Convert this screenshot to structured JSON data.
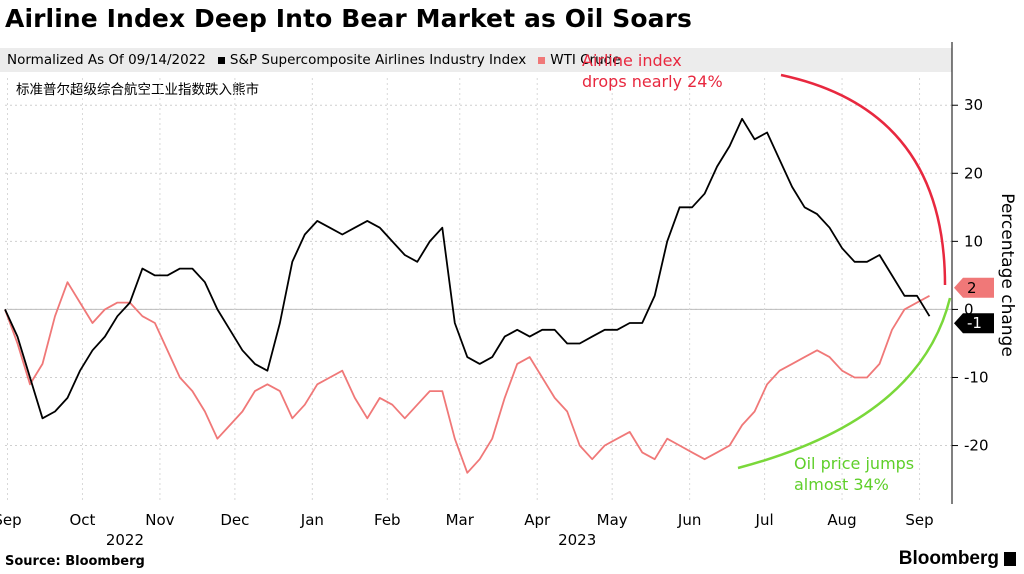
{
  "title": "Airline Index Deep Into Bear Market as Oil Soars",
  "subtitle_cn": "标准普尔超级综合航空工业指数跌入熊市",
  "legend": {
    "prefix": "Normalized As Of 09/14/2022",
    "items": [
      {
        "label": "S&P Supercomposite Airlines Industry Index",
        "color": "#000000"
      },
      {
        "label": "WTI Crude",
        "color": "#f07878"
      }
    ]
  },
  "source": "Source: Bloomberg",
  "brand": "Bloomberg",
  "chart_data": {
    "type": "line",
    "ylabel": "Percentage change",
    "ylim": [
      -28,
      34
    ],
    "yticks": [
      30,
      20,
      10,
      0,
      -10,
      -20
    ],
    "grid": true,
    "x_range": [
      "2022-09-14",
      "2023-09-28"
    ],
    "month_labels": [
      {
        "label": "Sep",
        "date": "2022-09-15"
      },
      {
        "label": "Oct",
        "date": "2022-10-15"
      },
      {
        "label": "Nov",
        "date": "2022-11-15"
      },
      {
        "label": "Dec",
        "date": "2022-12-15"
      },
      {
        "label": "Jan",
        "date": "2023-01-15"
      },
      {
        "label": "Feb",
        "date": "2023-02-14"
      },
      {
        "label": "Mar",
        "date": "2023-03-15"
      },
      {
        "label": "Apr",
        "date": "2023-04-15"
      },
      {
        "label": "May",
        "date": "2023-05-15"
      },
      {
        "label": "Jun",
        "date": "2023-06-15"
      },
      {
        "label": "Jul",
        "date": "2023-07-15"
      },
      {
        "label": "Aug",
        "date": "2023-08-15"
      },
      {
        "label": "Sep",
        "date": "2023-09-15"
      }
    ],
    "year_labels": [
      {
        "label": "2022",
        "date": "2022-11-01"
      },
      {
        "label": "2023",
        "date": "2023-05-01"
      }
    ],
    "series": [
      {
        "name": "S&P Supercomposite Airlines Industry Index",
        "color": "#000000",
        "points": [
          [
            "2022-09-14",
            0
          ],
          [
            "2022-09-19",
            -4
          ],
          [
            "2022-09-24",
            -10
          ],
          [
            "2022-09-29",
            -16
          ],
          [
            "2022-10-04",
            -15
          ],
          [
            "2022-10-09",
            -13
          ],
          [
            "2022-10-14",
            -9
          ],
          [
            "2022-10-19",
            -6
          ],
          [
            "2022-10-24",
            -4
          ],
          [
            "2022-10-29",
            -1
          ],
          [
            "2022-11-03",
            1
          ],
          [
            "2022-11-08",
            6
          ],
          [
            "2022-11-13",
            5
          ],
          [
            "2022-11-18",
            5
          ],
          [
            "2022-11-23",
            6
          ],
          [
            "2022-11-28",
            6
          ],
          [
            "2022-12-03",
            4
          ],
          [
            "2022-12-08",
            0
          ],
          [
            "2022-12-13",
            -3
          ],
          [
            "2022-12-18",
            -6
          ],
          [
            "2022-12-23",
            -8
          ],
          [
            "2022-12-28",
            -9
          ],
          [
            "2023-01-02",
            -2
          ],
          [
            "2023-01-07",
            7
          ],
          [
            "2023-01-12",
            11
          ],
          [
            "2023-01-17",
            13
          ],
          [
            "2023-01-22",
            12
          ],
          [
            "2023-01-27",
            11
          ],
          [
            "2023-02-01",
            12
          ],
          [
            "2023-02-06",
            13
          ],
          [
            "2023-02-11",
            12
          ],
          [
            "2023-02-16",
            10
          ],
          [
            "2023-02-21",
            8
          ],
          [
            "2023-02-26",
            7
          ],
          [
            "2023-03-03",
            10
          ],
          [
            "2023-03-08",
            12
          ],
          [
            "2023-03-13",
            -2
          ],
          [
            "2023-03-18",
            -7
          ],
          [
            "2023-03-23",
            -8
          ],
          [
            "2023-03-28",
            -7
          ],
          [
            "2023-04-02",
            -4
          ],
          [
            "2023-04-07",
            -3
          ],
          [
            "2023-04-12",
            -4
          ],
          [
            "2023-04-17",
            -3
          ],
          [
            "2023-04-22",
            -3
          ],
          [
            "2023-04-27",
            -5
          ],
          [
            "2023-05-02",
            -5
          ],
          [
            "2023-05-07",
            -4
          ],
          [
            "2023-05-12",
            -3
          ],
          [
            "2023-05-17",
            -3
          ],
          [
            "2023-05-22",
            -2
          ],
          [
            "2023-05-27",
            -2
          ],
          [
            "2023-06-01",
            2
          ],
          [
            "2023-06-06",
            10
          ],
          [
            "2023-06-11",
            15
          ],
          [
            "2023-06-16",
            15
          ],
          [
            "2023-06-21",
            17
          ],
          [
            "2023-06-26",
            21
          ],
          [
            "2023-07-01",
            24
          ],
          [
            "2023-07-06",
            28
          ],
          [
            "2023-07-11",
            25
          ],
          [
            "2023-07-16",
            26
          ],
          [
            "2023-07-21",
            22
          ],
          [
            "2023-07-26",
            18
          ],
          [
            "2023-07-31",
            15
          ],
          [
            "2023-08-05",
            14
          ],
          [
            "2023-08-10",
            12
          ],
          [
            "2023-08-15",
            9
          ],
          [
            "2023-08-20",
            7
          ],
          [
            "2023-08-25",
            7
          ],
          [
            "2023-08-30",
            8
          ],
          [
            "2023-09-04",
            5
          ],
          [
            "2023-09-09",
            2
          ],
          [
            "2023-09-14",
            2
          ],
          [
            "2023-09-19",
            -1
          ]
        ]
      },
      {
        "name": "WTI Crude",
        "color": "#f07878",
        "points": [
          [
            "2022-09-14",
            0
          ],
          [
            "2022-09-19",
            -5
          ],
          [
            "2022-09-24",
            -11
          ],
          [
            "2022-09-29",
            -8
          ],
          [
            "2022-10-04",
            -1
          ],
          [
            "2022-10-09",
            4
          ],
          [
            "2022-10-14",
            1
          ],
          [
            "2022-10-19",
            -2
          ],
          [
            "2022-10-24",
            0
          ],
          [
            "2022-10-29",
            1
          ],
          [
            "2022-11-03",
            1
          ],
          [
            "2022-11-08",
            -1
          ],
          [
            "2022-11-13",
            -2
          ],
          [
            "2022-11-18",
            -6
          ],
          [
            "2022-11-23",
            -10
          ],
          [
            "2022-11-28",
            -12
          ],
          [
            "2022-12-03",
            -15
          ],
          [
            "2022-12-08",
            -19
          ],
          [
            "2022-12-13",
            -17
          ],
          [
            "2022-12-18",
            -15
          ],
          [
            "2022-12-23",
            -12
          ],
          [
            "2022-12-28",
            -11
          ],
          [
            "2023-01-02",
            -12
          ],
          [
            "2023-01-07",
            -16
          ],
          [
            "2023-01-12",
            -14
          ],
          [
            "2023-01-17",
            -11
          ],
          [
            "2023-01-22",
            -10
          ],
          [
            "2023-01-27",
            -9
          ],
          [
            "2023-02-01",
            -13
          ],
          [
            "2023-02-06",
            -16
          ],
          [
            "2023-02-11",
            -13
          ],
          [
            "2023-02-16",
            -14
          ],
          [
            "2023-02-21",
            -16
          ],
          [
            "2023-02-26",
            -14
          ],
          [
            "2023-03-03",
            -12
          ],
          [
            "2023-03-08",
            -12
          ],
          [
            "2023-03-13",
            -19
          ],
          [
            "2023-03-18",
            -24
          ],
          [
            "2023-03-23",
            -22
          ],
          [
            "2023-03-28",
            -19
          ],
          [
            "2023-04-02",
            -13
          ],
          [
            "2023-04-07",
            -8
          ],
          [
            "2023-04-12",
            -7
          ],
          [
            "2023-04-17",
            -10
          ],
          [
            "2023-04-22",
            -13
          ],
          [
            "2023-04-27",
            -15
          ],
          [
            "2023-05-02",
            -20
          ],
          [
            "2023-05-07",
            -22
          ],
          [
            "2023-05-12",
            -20
          ],
          [
            "2023-05-17",
            -19
          ],
          [
            "2023-05-22",
            -18
          ],
          [
            "2023-05-27",
            -21
          ],
          [
            "2023-06-01",
            -22
          ],
          [
            "2023-06-06",
            -19
          ],
          [
            "2023-06-11",
            -20
          ],
          [
            "2023-06-16",
            -21
          ],
          [
            "2023-06-21",
            -22
          ],
          [
            "2023-06-26",
            -21
          ],
          [
            "2023-07-01",
            -20
          ],
          [
            "2023-07-06",
            -17
          ],
          [
            "2023-07-11",
            -15
          ],
          [
            "2023-07-16",
            -11
          ],
          [
            "2023-07-21",
            -9
          ],
          [
            "2023-07-26",
            -8
          ],
          [
            "2023-07-31",
            -7
          ],
          [
            "2023-08-05",
            -6
          ],
          [
            "2023-08-10",
            -7
          ],
          [
            "2023-08-15",
            -9
          ],
          [
            "2023-08-20",
            -10
          ],
          [
            "2023-08-25",
            -10
          ],
          [
            "2023-08-30",
            -8
          ],
          [
            "2023-09-04",
            -3
          ],
          [
            "2023-09-09",
            0
          ],
          [
            "2023-09-14",
            1
          ],
          [
            "2023-09-19",
            2
          ]
        ]
      }
    ],
    "end_labels": [
      {
        "value": 2,
        "text": "2",
        "color": "#f07878",
        "text_color": "#000000"
      },
      {
        "value": -1,
        "text": "-1",
        "color": "#000000",
        "text_color": "#ffffff"
      }
    ],
    "annotations": [
      {
        "lines": [
          "Airline index",
          "drops nearly 24%"
        ],
        "color": "#e8283f"
      },
      {
        "lines": [
          "Oil price jumps",
          "almost 34%"
        ],
        "color": "#5fcf2a"
      }
    ]
  }
}
